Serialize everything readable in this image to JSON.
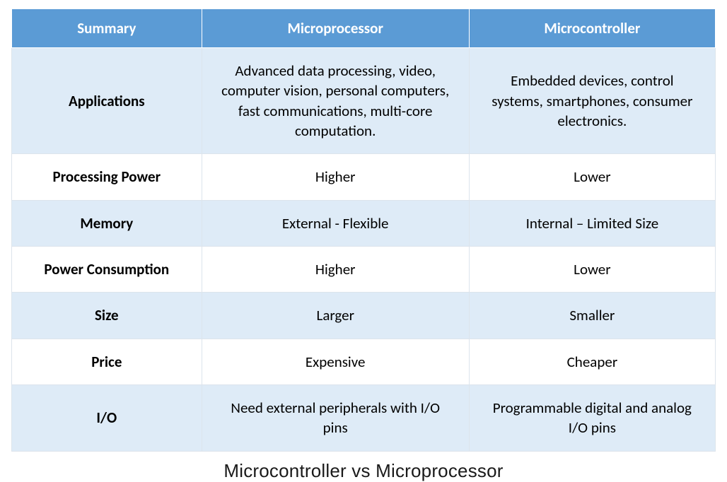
{
  "table": {
    "header_bg": "#5b9bd5",
    "header_fg": "#ffffff",
    "row_alt_bg": "#deebf7",
    "row_bg": "#ffffff",
    "border_color": "#dce4ec",
    "font_family": "Calibri",
    "header_fontsize": 21,
    "cell_fontsize": 21,
    "column_widths_pct": [
      27,
      38,
      35
    ],
    "columns": [
      "Summary",
      "Microprocessor",
      "Microcontroller"
    ],
    "rows": [
      {
        "label": "Applications",
        "mp": "Advanced data processing, video, computer vision, personal computers, fast communications, multi-core computation.",
        "mc": "Embedded devices, control systems, smartphones, consumer electronics."
      },
      {
        "label": "Processing Power",
        "mp": "Higher",
        "mc": "Lower"
      },
      {
        "label": "Memory",
        "mp": "External - Flexible",
        "mc": "Internal – Limited Size"
      },
      {
        "label": "Power Consumption",
        "mp": "Higher",
        "mc": "Lower"
      },
      {
        "label": "Size",
        "mp": "Larger",
        "mc": "Smaller"
      },
      {
        "label": "Price",
        "mp": "Expensive",
        "mc": "Cheaper"
      },
      {
        "label": "I/O",
        "mp": "Need external peripherals with I/O pins",
        "mc": "Programmable digital and analog I/O pins"
      }
    ]
  },
  "caption": "Microcontroller vs Microprocessor",
  "caption_fontsize": 26
}
